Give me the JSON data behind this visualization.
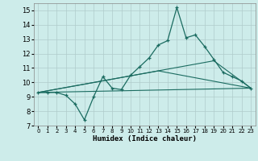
{
  "xlabel": "Humidex (Indice chaleur)",
  "bg_color": "#cdecea",
  "grid_color": "#b0cccb",
  "line_color": "#1a6b60",
  "xlim": [
    -0.5,
    23.5
  ],
  "ylim": [
    7,
    15.5
  ],
  "xticks": [
    0,
    1,
    2,
    3,
    4,
    5,
    6,
    7,
    8,
    9,
    10,
    11,
    12,
    13,
    14,
    15,
    16,
    17,
    18,
    19,
    20,
    21,
    22,
    23
  ],
  "yticks": [
    7,
    8,
    9,
    10,
    11,
    12,
    13,
    14,
    15
  ],
  "line1_x": [
    0,
    1,
    2,
    3,
    4,
    5,
    6,
    7,
    8,
    9,
    10,
    11,
    12,
    13,
    14,
    15,
    16,
    17,
    18,
    19,
    20,
    21,
    22,
    23
  ],
  "line1_y": [
    9.3,
    9.3,
    9.3,
    9.1,
    8.5,
    7.4,
    9.0,
    10.4,
    9.6,
    9.5,
    10.5,
    11.1,
    11.7,
    12.6,
    12.9,
    15.2,
    13.1,
    13.3,
    12.5,
    11.6,
    10.7,
    10.4,
    10.1,
    9.6
  ],
  "line2_x": [
    0,
    23
  ],
  "line2_y": [
    9.3,
    9.6
  ],
  "line3_x": [
    0,
    13,
    23
  ],
  "line3_y": [
    9.3,
    10.8,
    9.6
  ],
  "line4_x": [
    0,
    19,
    23
  ],
  "line4_y": [
    9.3,
    11.5,
    9.6
  ]
}
